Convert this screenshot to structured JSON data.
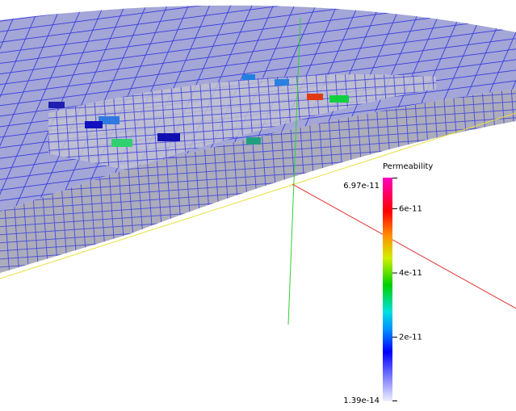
{
  "colorbar": {
    "title": "Permeability",
    "min": 1.39e-14,
    "max": 6.97e-11,
    "ticks": [
      6e-11,
      4e-11,
      2e-11
    ]
  }
}
